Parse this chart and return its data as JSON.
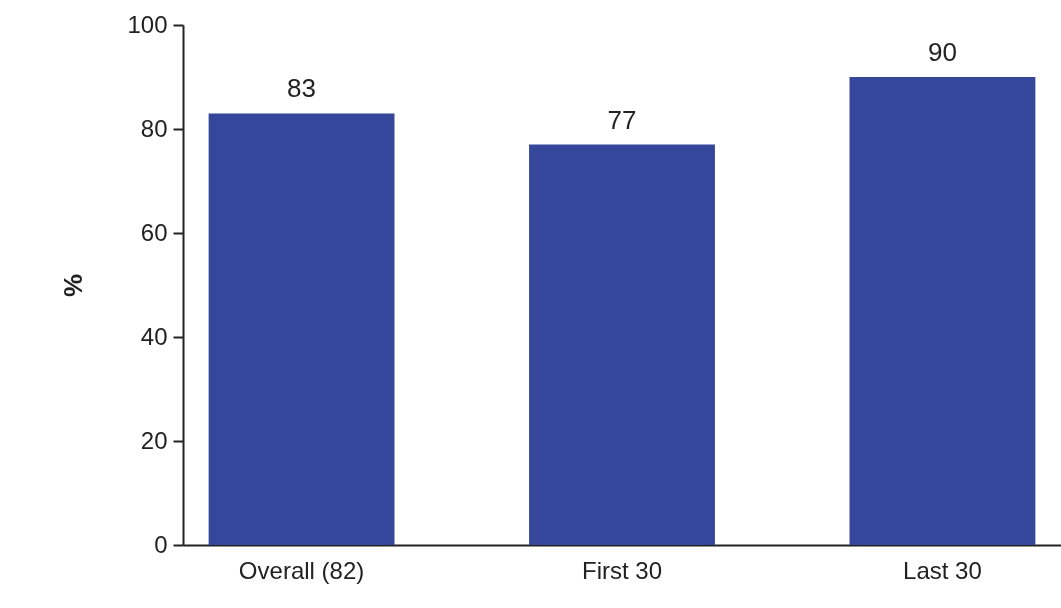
{
  "chart_data": {
    "type": "bar",
    "ylabel": "%",
    "categories": [
      "Overall (82)",
      "First 30",
      "Last 30"
    ],
    "values": [
      83,
      77,
      90
    ],
    "color": "#34479a",
    "ylim": [
      0,
      100
    ],
    "yticks": [
      0,
      20,
      40,
      60,
      80,
      100
    ],
    "data_labels": true,
    "grid": false
  }
}
